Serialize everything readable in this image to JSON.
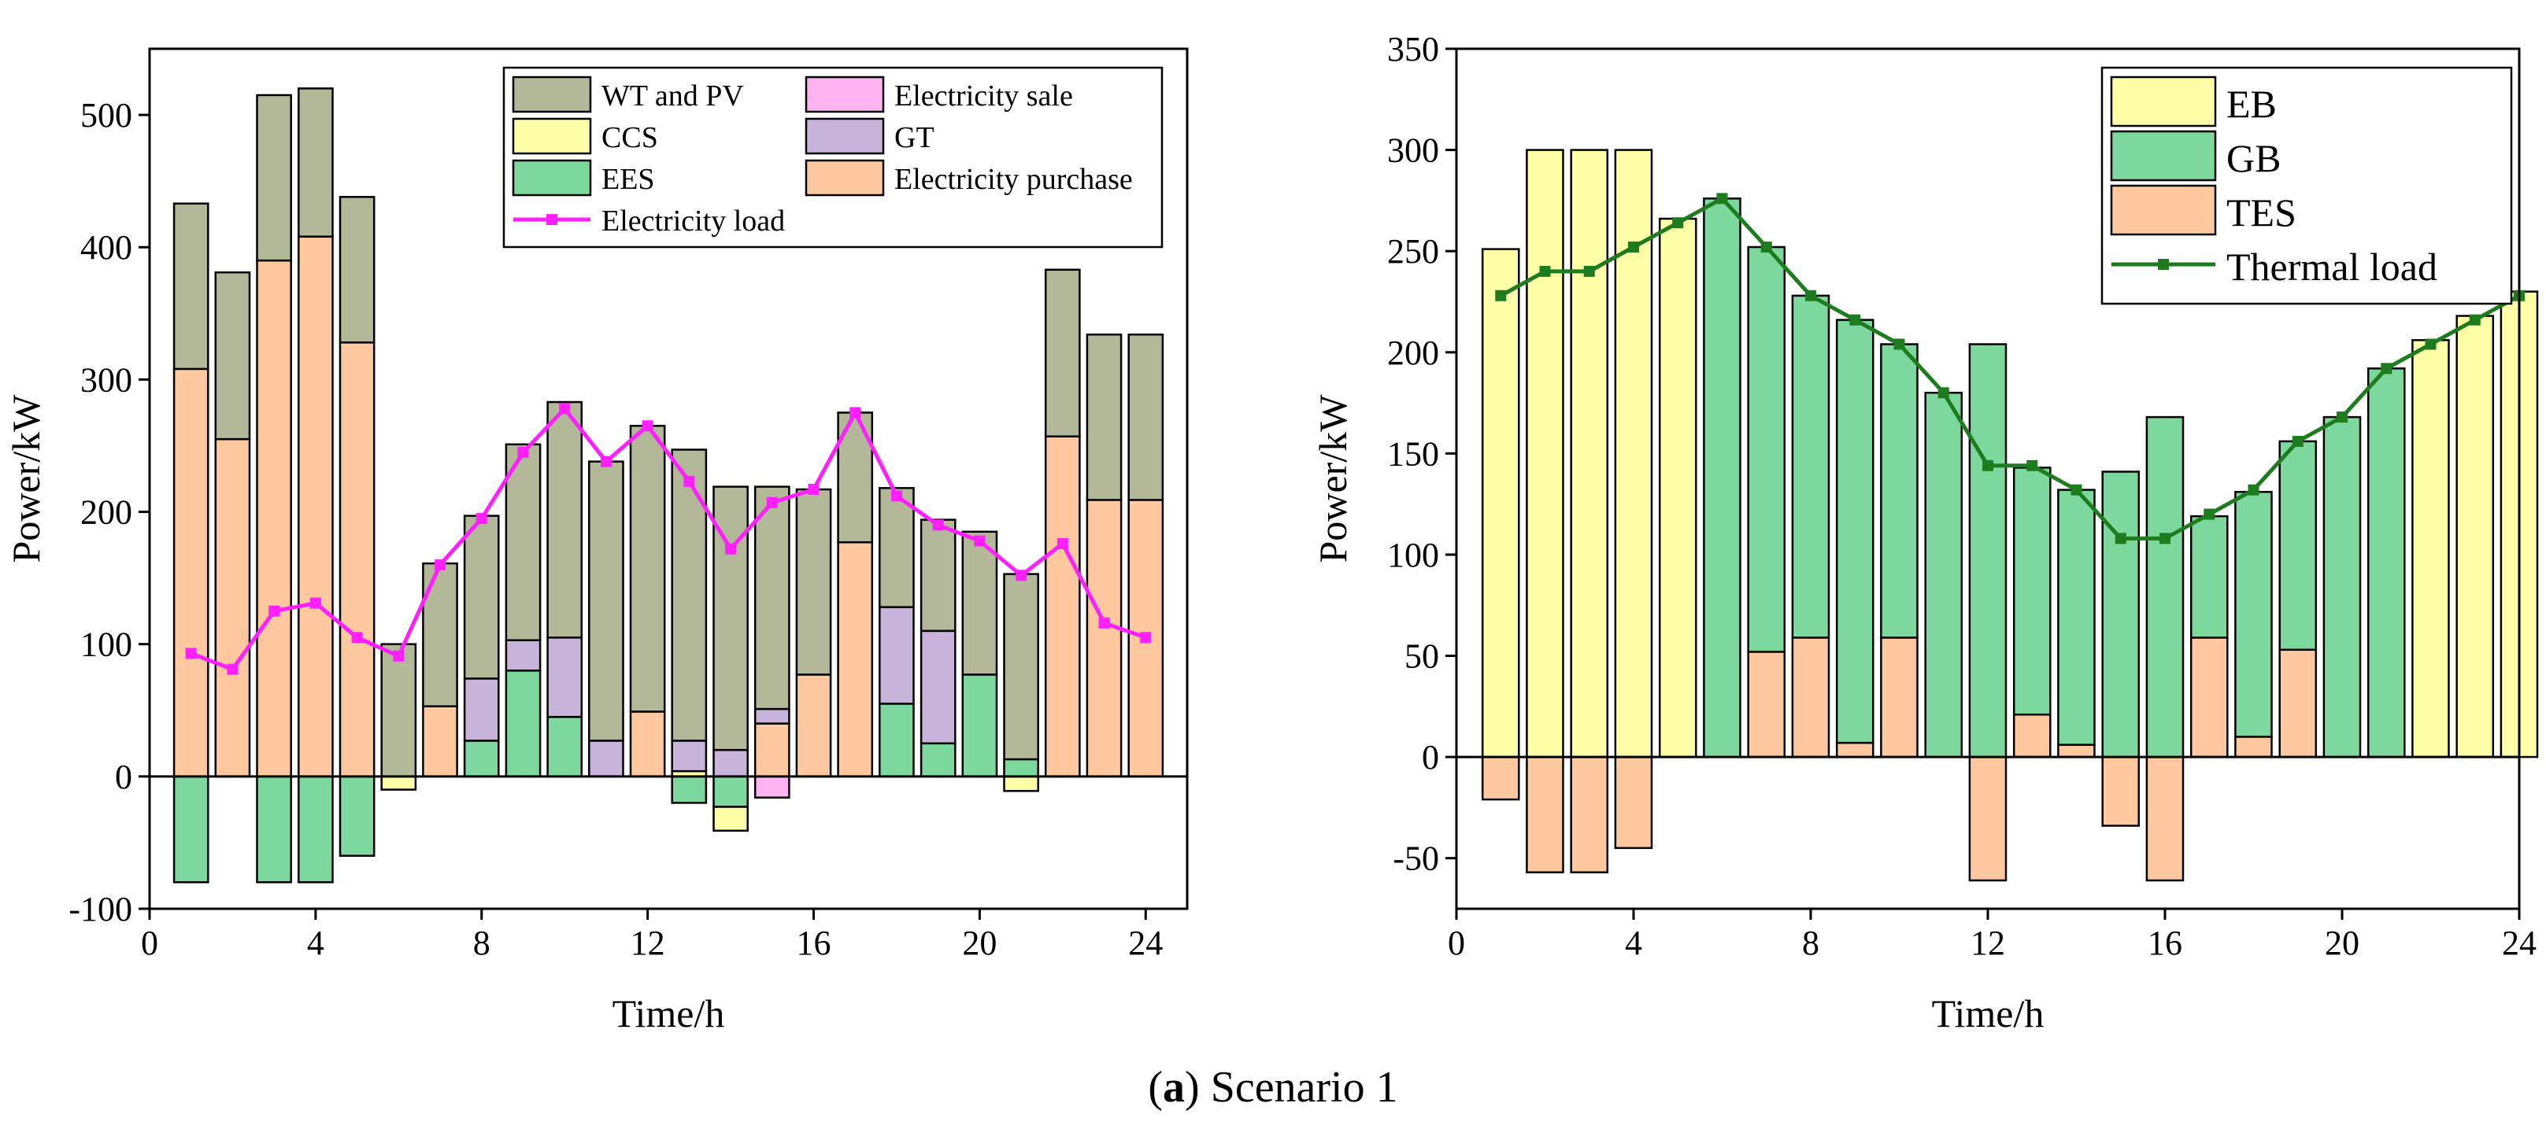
{
  "caption": {
    "label": "a",
    "open": "(",
    "close": ")",
    "text": "Scenario 1"
  },
  "colors": {
    "wt_pv": "#B3B898",
    "ccs": "#FFFFA8",
    "ees": "#7DD89E",
    "sale": "#FFB3F0",
    "gt": "#C8B3DA",
    "purchase": "#FFC89E",
    "elec_load": "#FF1FFF",
    "eb": "#FFFFA8",
    "gb": "#7DD89E",
    "tes": "#FFC89E",
    "thermal_load": "#1E7B1E"
  },
  "chart_data": [
    {
      "type": "bar",
      "subtype": "stacked",
      "title": "",
      "xlabel": "Time/h",
      "ylabel": "Power/kW",
      "xlim": [
        0,
        25
      ],
      "ylim": [
        -100,
        550
      ],
      "x_ticks": [
        "0",
        "4",
        "8",
        "12",
        "16",
        "20",
        "24"
      ],
      "y_ticks": [
        "-100",
        "0",
        "100",
        "200",
        "300",
        "400",
        "500"
      ],
      "legend_position": "top-right",
      "legend_labels": [
        "WT and PV",
        "Electricity sale",
        "CCS",
        "GT",
        "EES",
        "Electricity purchase",
        "Electricity load"
      ],
      "x": [
        1,
        2,
        3,
        4,
        5,
        6,
        7,
        8,
        9,
        10,
        11,
        12,
        13,
        14,
        15,
        16,
        17,
        18,
        19,
        20,
        21,
        22,
        23,
        24
      ],
      "series": [
        {
          "name": "Electricity purchase",
          "color_key": "purchase",
          "values": [
            308,
            255,
            390,
            408,
            328,
            0,
            53,
            0,
            0,
            0,
            0,
            49,
            0,
            0,
            40,
            77,
            177,
            0,
            0,
            0,
            0,
            257,
            209,
            209
          ]
        },
        {
          "name": "EES",
          "color_key": "ees",
          "values": [
            -80,
            0,
            -80,
            -80,
            -60,
            0,
            0,
            27,
            80,
            45,
            0,
            0,
            -20,
            -23,
            0,
            0,
            0,
            55,
            25,
            77,
            13,
            0,
            0,
            0
          ]
        },
        {
          "name": "CCS",
          "color_key": "ccs",
          "values": [
            0,
            0,
            0,
            0,
            0,
            -10,
            0,
            0,
            0,
            0,
            0,
            0,
            4,
            -18,
            0,
            0,
            0,
            0,
            0,
            0,
            -11,
            0,
            0,
            0
          ]
        },
        {
          "name": "GT",
          "color_key": "gt",
          "values": [
            0,
            0,
            0,
            0,
            0,
            0,
            0,
            47,
            23,
            60,
            27,
            0,
            23,
            20,
            11,
            0,
            0,
            73,
            85,
            0,
            0,
            0,
            0,
            0
          ]
        },
        {
          "name": "Electricity sale",
          "color_key": "sale",
          "values": [
            0,
            0,
            0,
            0,
            0,
            0,
            0,
            0,
            0,
            0,
            0,
            0,
            0,
            0,
            -16,
            0,
            0,
            0,
            0,
            0,
            0,
            0,
            0,
            0
          ]
        },
        {
          "name": "WT and PV",
          "color_key": "wt_pv",
          "values": [
            125,
            126,
            125,
            112,
            110,
            100,
            108,
            123,
            148,
            178,
            211,
            216,
            220,
            199,
            168,
            140,
            98,
            90,
            84,
            108,
            140,
            126,
            125,
            125
          ]
        }
      ],
      "line": {
        "name": "Electricity load",
        "color_key": "elec_load",
        "values": [
          93,
          81,
          125,
          131,
          105,
          91,
          160,
          195,
          245,
          278,
          238,
          265,
          223,
          172,
          207,
          217,
          275,
          212,
          190,
          178,
          152,
          176,
          116,
          105
        ]
      }
    },
    {
      "type": "bar",
      "subtype": "stacked",
      "title": "",
      "xlabel": "Time/h",
      "ylabel": "Power/kW",
      "xlim": [
        0,
        24
      ],
      "ylim": [
        -75,
        350
      ],
      "x_ticks": [
        "0",
        "4",
        "8",
        "12",
        "16",
        "20",
        "24"
      ],
      "y_ticks": [
        "-50",
        "0",
        "50",
        "100",
        "150",
        "200",
        "250",
        "300",
        "350"
      ],
      "legend_position": "top-right",
      "legend_labels": [
        "EB",
        "GB",
        "TES",
        "Thermal load"
      ],
      "x": [
        1,
        2,
        3,
        4,
        5,
        6,
        7,
        8,
        9,
        10,
        11,
        12,
        13,
        14,
        15,
        16,
        17,
        18,
        19,
        20,
        21,
        22,
        23,
        24
      ],
      "series": [
        {
          "name": "TES",
          "color_key": "tes",
          "values": [
            -21,
            -57,
            -57,
            -45,
            0,
            0,
            52,
            59,
            7,
            59,
            0,
            -61,
            21,
            6,
            -34,
            -61,
            59,
            10,
            53,
            0,
            0,
            0,
            0,
            0
          ]
        },
        {
          "name": "GB",
          "color_key": "gb",
          "values": [
            0,
            0,
            0,
            0,
            0,
            276,
            200,
            169,
            209,
            145,
            180,
            204,
            122,
            126,
            141,
            168,
            60,
            121,
            103,
            168,
            192,
            0,
            0,
            0
          ]
        },
        {
          "name": "EB",
          "color_key": "eb",
          "values": [
            251,
            300,
            300,
            300,
            266,
            0,
            0,
            0,
            0,
            0,
            0,
            0,
            0,
            0,
            0,
            0,
            0,
            0,
            0,
            0,
            0,
            206,
            218,
            230
          ]
        }
      ],
      "line": {
        "name": "Thermal load",
        "color_key": "thermal_load",
        "values": [
          228,
          240,
          240,
          252,
          264,
          276,
          252,
          228,
          216,
          204,
          180,
          144,
          144,
          132,
          108,
          108,
          120,
          132,
          156,
          168,
          192,
          204,
          216,
          228
        ]
      }
    }
  ]
}
